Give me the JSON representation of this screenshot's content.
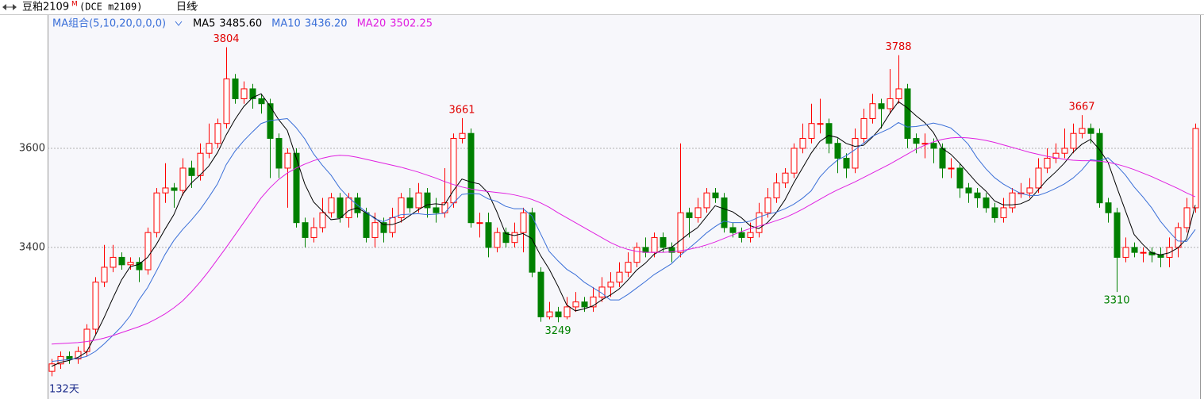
{
  "chart_data": {
    "type": "candlestick",
    "title": "豆粕2109",
    "title_superscript": "M",
    "subtitle": "(DCE m2109)",
    "period": "日线",
    "indicator": "MA组合(5,10,20,0,0,0)",
    "day_count": "132天",
    "ylim": [
      3099,
      3864
    ],
    "yticks": [
      3400,
      3600
    ],
    "grid": true,
    "up_color": "#ff0000",
    "down_color": "#008000",
    "high_label_color": "#e00000",
    "low_label_color": "#008000",
    "open": [
      3150,
      3165,
      3180,
      3175,
      3190,
      3235,
      3330,
      3360,
      3380,
      3365,
      3370,
      3355,
      3430,
      3510,
      3520,
      3515,
      3560,
      3545,
      3590,
      3610,
      3650,
      3740,
      3700,
      3720,
      3700,
      3690,
      3620,
      3560,
      3590,
      3450,
      3420,
      3440,
      3470,
      3500,
      3460,
      3500,
      3470,
      3420,
      3450,
      3430,
      3460,
      3500,
      3480,
      3510,
      3480,
      3470,
      3490,
      3620,
      3630,
      3450,
      3450,
      3400,
      3430,
      3410,
      3430,
      3470,
      3350,
      3260,
      3270,
      3260,
      3280,
      3290,
      3280,
      3300,
      3320,
      3330,
      3350,
      3370,
      3400,
      3390,
      3420,
      3400,
      3390,
      3470,
      3460,
      3480,
      3510,
      3500,
      3440,
      3430,
      3420,
      3430,
      3470,
      3500,
      3530,
      3550,
      3600,
      3620,
      3650,
      3650,
      3610,
      3580,
      3560,
      3620,
      3660,
      3690,
      3680,
      3700,
      3720,
      3620,
      3610,
      3610,
      3600,
      3560,
      3560,
      3520,
      3510,
      3500,
      3480,
      3460,
      3480,
      3510,
      3510,
      3520,
      3560,
      3580,
      3590,
      3600,
      3630,
      3640,
      3630,
      3490,
      3470,
      3380,
      3400,
      3390,
      3390,
      3385,
      3380,
      3400,
      3440,
      3480
    ],
    "high": [
      3175,
      3190,
      3190,
      3200,
      3245,
      3340,
      3405,
      3405,
      3390,
      3380,
      3380,
      3440,
      3520,
      3570,
      3530,
      3580,
      3575,
      3610,
      3650,
      3660,
      3804,
      3750,
      3735,
      3730,
      3710,
      3700,
      3630,
      3600,
      3600,
      3460,
      3460,
      3500,
      3510,
      3510,
      3510,
      3510,
      3480,
      3470,
      3460,
      3480,
      3510,
      3520,
      3530,
      3520,
      3500,
      3560,
      3630,
      3661,
      3640,
      3470,
      3470,
      3440,
      3440,
      3450,
      3480,
      3480,
      3360,
      3290,
      3280,
      3300,
      3310,
      3300,
      3320,
      3340,
      3350,
      3370,
      3390,
      3410,
      3420,
      3430,
      3430,
      3410,
      3610,
      3480,
      3500,
      3520,
      3520,
      3510,
      3450,
      3440,
      3450,
      3490,
      3520,
      3550,
      3560,
      3610,
      3650,
      3690,
      3700,
      3660,
      3620,
      3590,
      3640,
      3680,
      3710,
      3700,
      3760,
      3788,
      3730,
      3630,
      3630,
      3620,
      3610,
      3580,
      3570,
      3530,
      3520,
      3510,
      3490,
      3500,
      3520,
      3530,
      3540,
      3580,
      3600,
      3610,
      3640,
      3650,
      3667,
      3650,
      3640,
      3500,
      3480,
      3420,
      3410,
      3400,
      3400,
      3400,
      3420,
      3450,
      3500,
      3650
    ],
    "low": [
      3140,
      3155,
      3165,
      3165,
      3180,
      3225,
      3320,
      3350,
      3355,
      3355,
      3330,
      3345,
      3420,
      3490,
      3480,
      3505,
      3520,
      3535,
      3580,
      3600,
      3640,
      3690,
      3690,
      3680,
      3670,
      3540,
      3540,
      3480,
      3440,
      3400,
      3410,
      3430,
      3460,
      3450,
      3440,
      3460,
      3410,
      3400,
      3410,
      3420,
      3450,
      3470,
      3470,
      3460,
      3450,
      3460,
      3480,
      3610,
      3440,
      3420,
      3380,
      3390,
      3400,
      3400,
      3390,
      3340,
      3250,
      3255,
      3249,
      3255,
      3270,
      3270,
      3270,
      3290,
      3300,
      3320,
      3340,
      3360,
      3380,
      3380,
      3390,
      3370,
      3380,
      3420,
      3450,
      3470,
      3490,
      3430,
      3420,
      3410,
      3410,
      3420,
      3460,
      3490,
      3520,
      3540,
      3590,
      3610,
      3630,
      3590,
      3550,
      3540,
      3550,
      3610,
      3650,
      3640,
      3670,
      3690,
      3600,
      3590,
      3580,
      3570,
      3540,
      3540,
      3500,
      3490,
      3480,
      3470,
      3450,
      3450,
      3470,
      3500,
      3500,
      3510,
      3550,
      3570,
      3580,
      3590,
      3620,
      3610,
      3480,
      3450,
      3310,
      3370,
      3380,
      3370,
      3370,
      3360,
      3360,
      3380,
      3430,
      3470
    ],
    "close": [
      3165,
      3180,
      3175,
      3190,
      3235,
      3330,
      3360,
      3380,
      3365,
      3370,
      3355,
      3430,
      3510,
      3520,
      3515,
      3560,
      3545,
      3590,
      3610,
      3650,
      3740,
      3700,
      3720,
      3700,
      3690,
      3620,
      3560,
      3590,
      3450,
      3420,
      3440,
      3470,
      3500,
      3460,
      3500,
      3470,
      3420,
      3450,
      3430,
      3460,
      3500,
      3480,
      3510,
      3480,
      3470,
      3490,
      3620,
      3630,
      3450,
      3450,
      3400,
      3430,
      3410,
      3430,
      3470,
      3350,
      3260,
      3270,
      3260,
      3280,
      3290,
      3280,
      3300,
      3320,
      3330,
      3350,
      3370,
      3400,
      3390,
      3420,
      3400,
      3390,
      3470,
      3460,
      3480,
      3510,
      3500,
      3440,
      3430,
      3420,
      3430,
      3470,
      3500,
      3530,
      3550,
      3600,
      3620,
      3650,
      3650,
      3610,
      3580,
      3560,
      3620,
      3660,
      3690,
      3680,
      3700,
      3720,
      3620,
      3610,
      3610,
      3600,
      3560,
      3560,
      3520,
      3510,
      3500,
      3480,
      3460,
      3480,
      3510,
      3510,
      3520,
      3560,
      3580,
      3590,
      3600,
      3630,
      3640,
      3630,
      3490,
      3470,
      3380,
      3400,
      3390,
      3390,
      3385,
      3380,
      3400,
      3440,
      3480,
      3640
    ],
    "series": [
      {
        "name": "MA5",
        "color": "#000000",
        "latest_label": "3485.60",
        "values": [
          3160,
          3168,
          3172,
          3178,
          3189,
          3222,
          3258,
          3297,
          3334,
          3361,
          3366,
          3380,
          3406,
          3437,
          3466,
          3507,
          3530,
          3546,
          3564,
          3591,
          3627,
          3658,
          3684,
          3702,
          3710,
          3686,
          3658,
          3636,
          3582,
          3528,
          3492,
          3474,
          3456,
          3458,
          3474,
          3480,
          3470,
          3460,
          3446,
          3446,
          3452,
          3464,
          3476,
          3486,
          3488,
          3486,
          3514,
          3538,
          3532,
          3528,
          3510,
          3472,
          3428,
          3424,
          3428,
          3418,
          3384,
          3356,
          3322,
          3284,
          3272,
          3276,
          3282,
          3294,
          3304,
          3316,
          3334,
          3354,
          3368,
          3386,
          3396,
          3400,
          3414,
          3428,
          3440,
          3462,
          3484,
          3478,
          3472,
          3460,
          3444,
          3438,
          3450,
          3470,
          3496,
          3530,
          3560,
          3590,
          3614,
          3626,
          3622,
          3610,
          3604,
          3606,
          3622,
          3642,
          3670,
          3694,
          3682,
          3666,
          3652,
          3632,
          3600,
          3588,
          3570,
          3550,
          3530,
          3514,
          3494,
          3486,
          3486,
          3488,
          3496,
          3516,
          3536,
          3552,
          3570,
          3592,
          3608,
          3618,
          3598,
          3572,
          3522,
          3474,
          3426,
          3406,
          3389,
          3385,
          3389,
          3399,
          3417,
          3485.6
        ]
      },
      {
        "name": "MA10",
        "color": "#3a6fd8",
        "latest_label": "3436.20",
        "values": [
          3170,
          3172,
          3174,
          3176,
          3180,
          3190,
          3205,
          3222,
          3240,
          3262,
          3294,
          3319,
          3352,
          3386,
          3414,
          3436,
          3455,
          3476,
          3501,
          3528,
          3567,
          3594,
          3615,
          3633,
          3650,
          3656,
          3658,
          3660,
          3642,
          3619,
          3589,
          3566,
          3546,
          3520,
          3501,
          3486,
          3472,
          3458,
          3452,
          3460,
          3466,
          3467,
          3468,
          3466,
          3467,
          3469,
          3489,
          3507,
          3509,
          3508,
          3498,
          3493,
          3483,
          3478,
          3478,
          3464,
          3428,
          3392,
          3373,
          3356,
          3345,
          3330,
          3319,
          3308,
          3294,
          3294,
          3305,
          3318,
          3331,
          3345,
          3356,
          3367,
          3384,
          3398,
          3413,
          3429,
          3442,
          3453,
          3450,
          3450,
          3453,
          3461,
          3467,
          3471,
          3478,
          3487,
          3499,
          3514,
          3542,
          3561,
          3576,
          3585,
          3597,
          3610,
          3624,
          3632,
          3640,
          3652,
          3643,
          3644,
          3647,
          3651,
          3647,
          3641,
          3626,
          3608,
          3581,
          3559,
          3541,
          3528,
          3518,
          3509,
          3505,
          3505,
          3511,
          3519,
          3528,
          3540,
          3556,
          3577,
          3575,
          3581,
          3565,
          3546,
          3522,
          3502,
          3480,
          3453,
          3432,
          3413,
          3412,
          3436.2
        ]
      },
      {
        "name": "MA20",
        "color": "#e020e0",
        "latest_label": "3502.25",
        "values": [
          3205,
          3206,
          3207,
          3208,
          3210,
          3213,
          3217,
          3222,
          3228,
          3234,
          3240,
          3247,
          3256,
          3266,
          3278,
          3292,
          3310,
          3330,
          3352,
          3376,
          3400,
          3425,
          3450,
          3475,
          3500,
          3520,
          3537,
          3550,
          3560,
          3568,
          3575,
          3580,
          3584,
          3586,
          3585,
          3582,
          3578,
          3574,
          3570,
          3566,
          3562,
          3557,
          3552,
          3546,
          3540,
          3533,
          3527,
          3522,
          3518,
          3515,
          3513,
          3511,
          3509,
          3506,
          3502,
          3497,
          3490,
          3481,
          3470,
          3460,
          3450,
          3440,
          3430,
          3420,
          3410,
          3402,
          3396,
          3392,
          3390,
          3390,
          3390,
          3391,
          3393,
          3396,
          3400,
          3405,
          3411,
          3418,
          3425,
          3432,
          3438,
          3443,
          3448,
          3454,
          3460,
          3468,
          3477,
          3487,
          3497,
          3507,
          3516,
          3524,
          3532,
          3541,
          3550,
          3559,
          3568,
          3578,
          3588,
          3598,
          3606,
          3613,
          3618,
          3621,
          3622,
          3621,
          3619,
          3616,
          3612,
          3607,
          3602,
          3597,
          3592,
          3588,
          3584,
          3581,
          3578,
          3576,
          3575,
          3575,
          3574,
          3572,
          3568,
          3563,
          3557,
          3550,
          3543,
          3535,
          3527,
          3519,
          3510,
          3502.25
        ]
      }
    ]
  }
}
